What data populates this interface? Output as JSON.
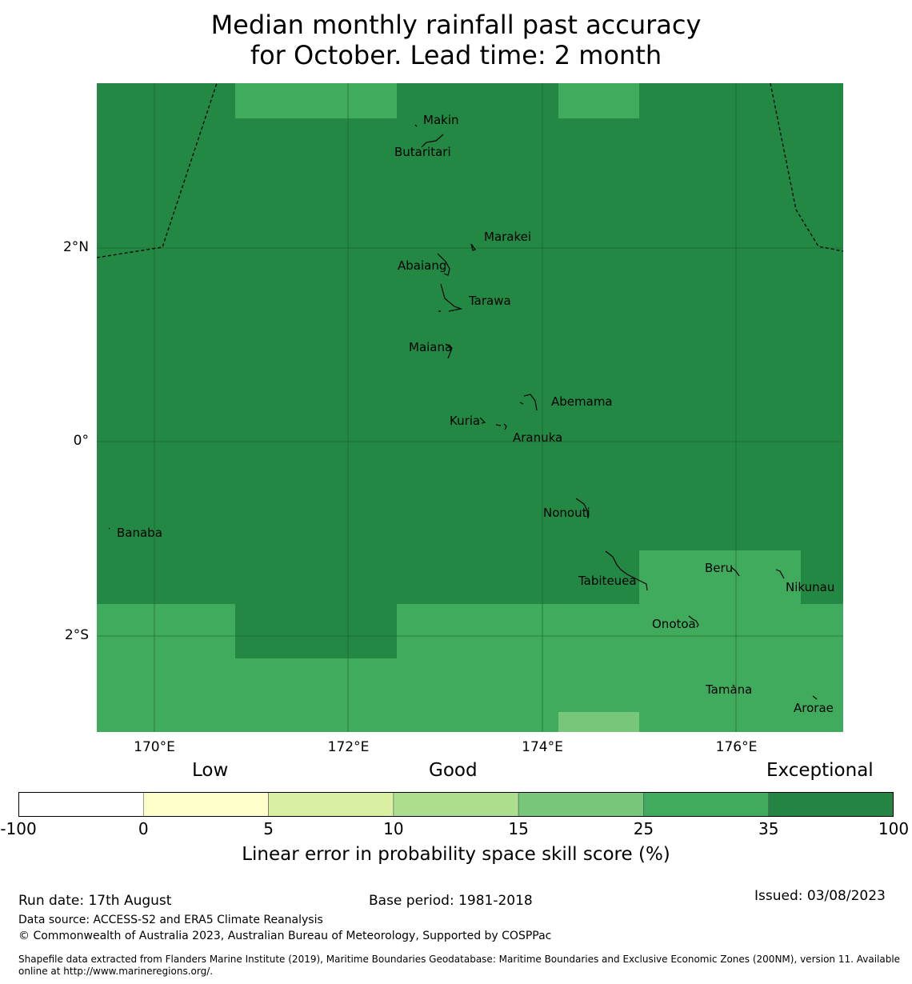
{
  "title": {
    "line1": "Median monthly rainfall past accuracy",
    "line2": "for October. Lead time: 2 month"
  },
  "map": {
    "fill_colors": {
      "exceptional": "#238843",
      "good_35": "#41ab5d",
      "good_25": "#78c679"
    },
    "lat_ticks": [
      {
        "value": 2,
        "label": "2°N"
      },
      {
        "value": 0,
        "label": "0°"
      },
      {
        "value": -2,
        "label": "2°S"
      }
    ],
    "lon_ticks": [
      {
        "value": 170,
        "label": "170°E"
      },
      {
        "value": 172,
        "label": "172°E"
      },
      {
        "value": 174,
        "label": "174°E"
      },
      {
        "value": 176,
        "label": "176°E"
      }
    ],
    "places": [
      {
        "name": "Makin",
        "lat": 3.35,
        "lon": 173.0
      },
      {
        "name": "Butaritari",
        "lat": 3.03,
        "lon": 172.8
      },
      {
        "name": "Marakei",
        "lat": 2.0,
        "lon": 173.28
      },
      {
        "name": "Abaiang",
        "lat": 1.85,
        "lon": 173.0
      },
      {
        "name": "Tarawa",
        "lat": 1.42,
        "lon": 173.1
      },
      {
        "name": "Maiana",
        "lat": 0.93,
        "lon": 173.0
      },
      {
        "name": "Abemama",
        "lat": 0.4,
        "lon": 173.9
      },
      {
        "name": "Kuria",
        "lat": 0.23,
        "lon": 173.4
      },
      {
        "name": "Aranuka",
        "lat": 0.16,
        "lon": 173.6
      },
      {
        "name": "Nonouti",
        "lat": -0.67,
        "lon": 174.4
      },
      {
        "name": "Banaba",
        "lat": -0.88,
        "lon": 169.53
      },
      {
        "name": "Tabiteuea",
        "lat": -1.35,
        "lon": 174.85
      },
      {
        "name": "Beru",
        "lat": -1.33,
        "lon": 175.98
      },
      {
        "name": "Nikunau",
        "lat": -1.36,
        "lon": 176.45
      },
      {
        "name": "Onotoa",
        "lat": -1.8,
        "lon": 175.55
      },
      {
        "name": "Tamana",
        "lat": -2.5,
        "lon": 175.98
      },
      {
        "name": "Arorae",
        "lat": -2.65,
        "lon": 176.82
      }
    ]
  },
  "colorbar": {
    "categories": [
      "Low",
      "Good",
      "Exceptional"
    ],
    "colors": [
      "#ffffff",
      "#ffffcc",
      "#d9f0a3",
      "#addd8e",
      "#78c679",
      "#41ab5d",
      "#238443"
    ],
    "ticks": [
      "-100",
      "0",
      "5",
      "10",
      "15",
      "25",
      "35",
      "100"
    ],
    "label": "Linear error in probability space skill score (%)"
  },
  "footer": {
    "run_date": "Run date: 17th August",
    "base_period": "Base period: 1981-2018",
    "issued": "Issued: 03/08/2023",
    "data_source": "Data source: ACCESS-S2 and ERA5 Climate Reanalysis",
    "copyright": "© Commonwealth of Australia 2023, Australian Bureau of Meteorology, Supported by COSPPac",
    "shapefile": "Shapefile data extracted from Flanders Marine Institute (2019), Maritime Boundaries Geodatabase: Maritime Boundaries and Exclusive Economic Zones (200NM), version 11. Available online at http://www.marineregions.org/."
  }
}
